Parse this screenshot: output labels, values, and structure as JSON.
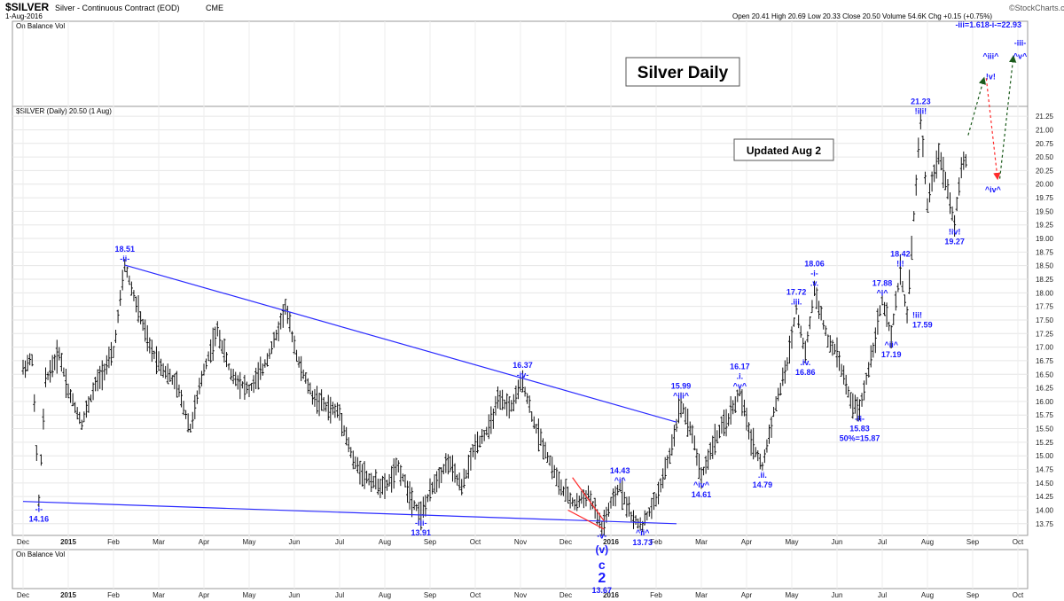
{
  "header": {
    "symbol": "$SILVER",
    "description": "Silver - Continuous Contract (EOD)",
    "exchange": "CME",
    "date": "1-Aug-2016",
    "ohlc_text": "Open 20.41  High 20.69  Low 20.33  Close 20.50  Volume 54.6K  Chg +0.15 (+0.75%)",
    "watermark": "©StockCharts.com",
    "obv_label": "On Balance Vol",
    "price_label": "$SILVER (Daily) 20.50 (1 Aug)"
  },
  "annotations": {
    "title": "Silver Daily",
    "updated": "Updated Aug 2",
    "fib_target": "-iii=1.618-i-=22.93"
  },
  "chart_data": {
    "type": "ohlc",
    "symbol": "$SILVER",
    "timeframe": "Daily",
    "x_ticks": [
      "Dec",
      "2015",
      "Feb",
      "Mar",
      "Apr",
      "May",
      "Jun",
      "Jul",
      "Aug",
      "Sep",
      "Oct",
      "Nov",
      "Dec",
      "2016",
      "Feb",
      "Mar",
      "Apr",
      "May",
      "Jun",
      "Jul",
      "Aug",
      "Sep",
      "Oct"
    ],
    "y_ticks": [
      13.75,
      14.0,
      14.25,
      14.5,
      14.75,
      15.0,
      15.25,
      15.5,
      15.75,
      16.0,
      16.25,
      16.5,
      16.75,
      17.0,
      17.25,
      17.5,
      17.75,
      18.0,
      18.25,
      18.5,
      18.75,
      19.0,
      19.25,
      19.5,
      19.75,
      20.0,
      20.25,
      20.5,
      20.75,
      21.0,
      21.25
    ],
    "ylim": [
      13.6,
      21.35
    ],
    "xlim": [
      0,
      22
    ],
    "price_path": [
      [
        0.0,
        16.6
      ],
      [
        0.2,
        16.8
      ],
      [
        0.35,
        14.16
      ],
      [
        0.5,
        16.4
      ],
      [
        0.8,
        16.9
      ],
      [
        1.0,
        16.2
      ],
      [
        1.3,
        15.6
      ],
      [
        1.6,
        16.3
      ],
      [
        2.0,
        16.9
      ],
      [
        2.25,
        18.51
      ],
      [
        2.5,
        17.8
      ],
      [
        2.8,
        17.0
      ],
      [
        3.1,
        16.6
      ],
      [
        3.4,
        16.3
      ],
      [
        3.7,
        15.5
      ],
      [
        4.0,
        16.6
      ],
      [
        4.3,
        17.3
      ],
      [
        4.6,
        16.5
      ],
      [
        5.0,
        16.2
      ],
      [
        5.3,
        16.6
      ],
      [
        5.6,
        17.2
      ],
      [
        5.8,
        17.75
      ],
      [
        6.1,
        16.7
      ],
      [
        6.4,
        16.1
      ],
      [
        6.7,
        15.9
      ],
      [
        7.0,
        15.8
      ],
      [
        7.3,
        14.9
      ],
      [
        7.6,
        14.6
      ],
      [
        8.0,
        14.4
      ],
      [
        8.3,
        14.8
      ],
      [
        8.6,
        14.2
      ],
      [
        8.8,
        13.91
      ],
      [
        9.1,
        14.5
      ],
      [
        9.4,
        14.9
      ],
      [
        9.7,
        14.4
      ],
      [
        10.0,
        15.2
      ],
      [
        10.3,
        15.5
      ],
      [
        10.5,
        16.0
      ],
      [
        10.8,
        15.9
      ],
      [
        11.05,
        16.37
      ],
      [
        11.3,
        15.6
      ],
      [
        11.6,
        15.0
      ],
      [
        11.9,
        14.4
      ],
      [
        12.2,
        14.1
      ],
      [
        12.5,
        14.3
      ],
      [
        12.8,
        13.67
      ],
      [
        13.0,
        14.1
      ],
      [
        13.2,
        14.43
      ],
      [
        13.5,
        13.8
      ],
      [
        13.7,
        13.73
      ],
      [
        14.0,
        14.2
      ],
      [
        14.3,
        15.0
      ],
      [
        14.55,
        15.99
      ],
      [
        14.8,
        15.4
      ],
      [
        15.0,
        14.61
      ],
      [
        15.3,
        15.3
      ],
      [
        15.6,
        15.7
      ],
      [
        15.85,
        16.17
      ],
      [
        16.1,
        15.3
      ],
      [
        16.35,
        14.79
      ],
      [
        16.6,
        15.8
      ],
      [
        16.9,
        16.7
      ],
      [
        17.1,
        17.72
      ],
      [
        17.3,
        16.86
      ],
      [
        17.5,
        18.06
      ],
      [
        17.8,
        17.1
      ],
      [
        18.0,
        16.9
      ],
      [
        18.3,
        16.0
      ],
      [
        18.5,
        15.83
      ],
      [
        18.8,
        17.0
      ],
      [
        19.0,
        17.88
      ],
      [
        19.2,
        17.19
      ],
      [
        19.4,
        18.42
      ],
      [
        19.55,
        17.59
      ],
      [
        19.7,
        19.4
      ],
      [
        19.85,
        21.23
      ],
      [
        20.0,
        19.6
      ],
      [
        20.25,
        20.6
      ],
      [
        20.45,
        19.9
      ],
      [
        20.6,
        19.27
      ],
      [
        20.75,
        20.3
      ],
      [
        20.9,
        20.5
      ]
    ],
    "trendlines": [
      {
        "from": [
          2.25,
          18.51
        ],
        "to": [
          14.45,
          15.62
        ],
        "color": "#2a2aff"
      },
      {
        "from": [
          0.0,
          14.16
        ],
        "to": [
          14.45,
          13.75
        ],
        "color": "#2a2aff"
      },
      {
        "from": [
          12.15,
          14.6
        ],
        "to": [
          12.85,
          13.8
        ],
        "color": "#ff2a2a"
      },
      {
        "from": [
          12.05,
          14.0
        ],
        "to": [
          12.85,
          13.65
        ],
        "color": "#ff2a2a"
      }
    ],
    "wave_labels": [
      {
        "text": "18.51",
        "x": 2.25,
        "y": 18.51,
        "pos": "above2"
      },
      {
        "text": "-ii-",
        "x": 2.25,
        "y": 18.51,
        "pos": "above1"
      },
      {
        "text": "-i-",
        "x": 0.35,
        "y": 14.16,
        "pos": "below1"
      },
      {
        "text": "14.16",
        "x": 0.35,
        "y": 14.16,
        "pos": "below2"
      },
      {
        "text": "16.37",
        "x": 11.05,
        "y": 16.37,
        "pos": "above2"
      },
      {
        "text": "-iv-",
        "x": 11.05,
        "y": 16.37,
        "pos": "above1"
      },
      {
        "text": "-iii-",
        "x": 8.8,
        "y": 13.91,
        "pos": "below1"
      },
      {
        "text": "13.91",
        "x": 8.8,
        "y": 13.91,
        "pos": "below2"
      },
      {
        "text": "14.43",
        "x": 13.2,
        "y": 14.43,
        "pos": "above2"
      },
      {
        "text": "^i^",
        "x": 13.2,
        "y": 14.43,
        "pos": "above1"
      },
      {
        "text": "^ii^",
        "x": 13.7,
        "y": 13.73,
        "pos": "below1"
      },
      {
        "text": "13.73",
        "x": 13.7,
        "y": 13.73,
        "pos": "below2"
      },
      {
        "text": "15.99",
        "x": 14.55,
        "y": 15.99,
        "pos": "above2"
      },
      {
        "text": "^iii^",
        "x": 14.55,
        "y": 15.99,
        "pos": "above1"
      },
      {
        "text": "^iv^",
        "x": 15.0,
        "y": 14.61,
        "pos": "below1"
      },
      {
        "text": "14.61",
        "x": 15.0,
        "y": 14.61,
        "pos": "below2"
      },
      {
        "text": "16.17",
        "x": 15.85,
        "y": 16.17,
        "pos": "above3"
      },
      {
        "text": ".i.",
        "x": 15.85,
        "y": 16.17,
        "pos": "above2"
      },
      {
        "text": "^v^",
        "x": 15.85,
        "y": 16.17,
        "pos": "above1"
      },
      {
        "text": ".ii.",
        "x": 16.35,
        "y": 14.79,
        "pos": "below1"
      },
      {
        "text": "14.79",
        "x": 16.35,
        "y": 14.79,
        "pos": "below2"
      },
      {
        "text": "17.72",
        "x": 17.1,
        "y": 17.72,
        "pos": "above2"
      },
      {
        "text": ".iii.",
        "x": 17.1,
        "y": 17.72,
        "pos": "above1"
      },
      {
        "text": ".iv.",
        "x": 17.3,
        "y": 16.86,
        "pos": "below1"
      },
      {
        "text": "16.86",
        "x": 17.3,
        "y": 16.86,
        "pos": "below2"
      },
      {
        "text": "18.06",
        "x": 17.5,
        "y": 18.06,
        "pos": "above3"
      },
      {
        "text": "-i-",
        "x": 17.5,
        "y": 18.06,
        "pos": "above2"
      },
      {
        "text": ".v.",
        "x": 17.5,
        "y": 18.06,
        "pos": "above1"
      },
      {
        "text": "-ii-",
        "x": 18.5,
        "y": 15.83,
        "pos": "below1"
      },
      {
        "text": "15.83",
        "x": 18.5,
        "y": 15.83,
        "pos": "below2"
      },
      {
        "text": "50%=15.87",
        "x": 18.5,
        "y": 15.83,
        "pos": "below3"
      },
      {
        "text": "17.88",
        "x": 19.0,
        "y": 17.88,
        "pos": "above2"
      },
      {
        "text": "^i^",
        "x": 19.0,
        "y": 17.88,
        "pos": "above1"
      },
      {
        "text": "^ii^",
        "x": 19.2,
        "y": 17.19,
        "pos": "below1"
      },
      {
        "text": "17.19",
        "x": 19.2,
        "y": 17.19,
        "pos": "below2"
      },
      {
        "text": "18.42",
        "x": 19.4,
        "y": 18.42,
        "pos": "above2"
      },
      {
        "text": "!i!",
        "x": 19.4,
        "y": 18.42,
        "pos": "above1"
      },
      {
        "text": "!ii!",
        "x": 19.55,
        "y": 17.59,
        "pos": "right1"
      },
      {
        "text": "17.59",
        "x": 19.55,
        "y": 17.59,
        "pos": "right2"
      },
      {
        "text": "21.23",
        "x": 19.85,
        "y": 21.23,
        "pos": "above2"
      },
      {
        "text": "!iii!",
        "x": 19.85,
        "y": 21.23,
        "pos": "above1"
      },
      {
        "text": "!iv!",
        "x": 20.6,
        "y": 19.27,
        "pos": "below1"
      },
      {
        "text": "19.27",
        "x": 20.6,
        "y": 19.27,
        "pos": "below2"
      },
      {
        "text": "^iii^",
        "x": 21.4,
        "y": 22.35,
        "pos": "at"
      },
      {
        "text": "!v!",
        "x": 21.4,
        "y": 21.98,
        "pos": "at"
      },
      {
        "text": "^iv^",
        "x": 21.45,
        "y": 19.9,
        "pos": "at"
      },
      {
        "text": "-iii-",
        "x": 22.05,
        "y": 22.6,
        "pos": "at"
      },
      {
        "text": "^v^",
        "x": 22.05,
        "y": 22.35,
        "pos": "at"
      },
      {
        "text": "-v-",
        "x": 12.8,
        "y": 13.67,
        "pos": "below1"
      }
    ],
    "cycle_labels": [
      {
        "text": "(v)",
        "x": 12.8
      },
      {
        "text": "c",
        "x": 12.8
      },
      {
        "text": "2",
        "x": 12.8
      },
      {
        "text": "13.67",
        "x": 12.8
      }
    ],
    "projection": [
      {
        "from": [
          20.9,
          20.9
        ],
        "to": [
          21.25,
          21.95
        ],
        "color": "#1a5a1a"
      },
      {
        "from": [
          21.3,
          21.95
        ],
        "to": [
          21.55,
          20.1
        ],
        "color": "#ff2a2a"
      },
      {
        "from": [
          21.6,
          20.1
        ],
        "to": [
          21.9,
          22.35
        ],
        "color": "#1a5a1a"
      }
    ]
  }
}
